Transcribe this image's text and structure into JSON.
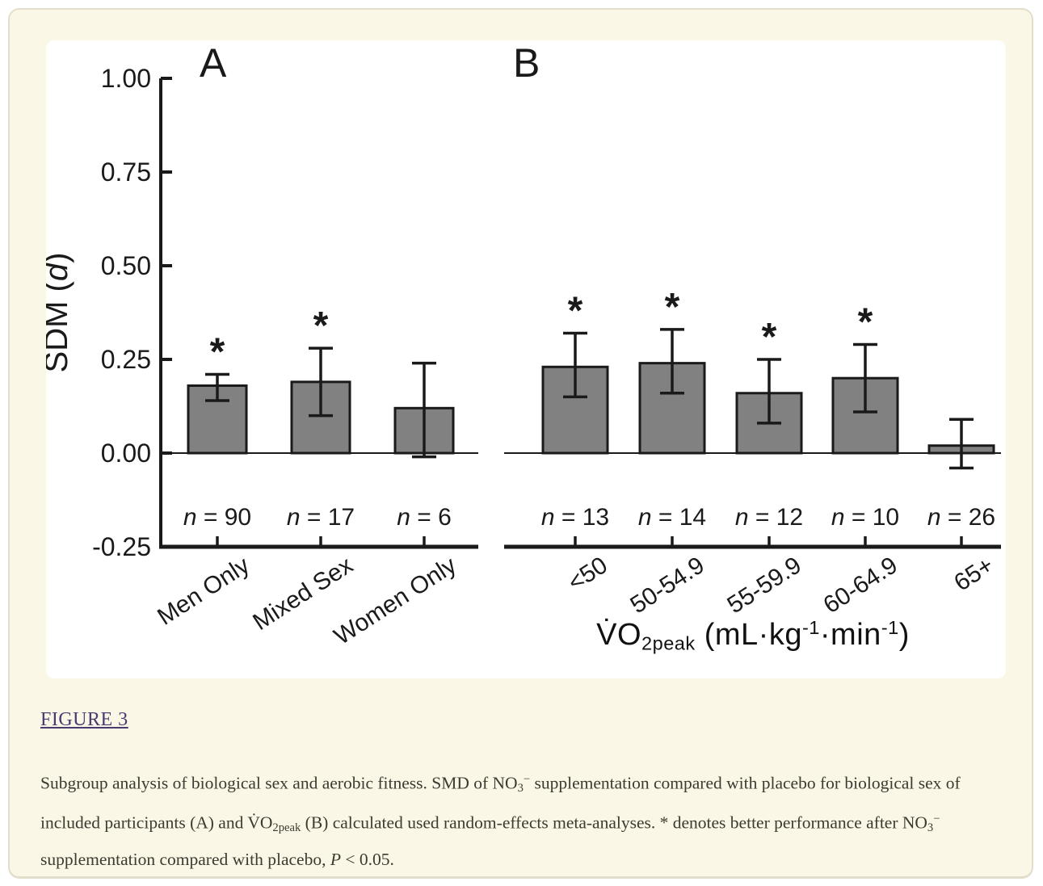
{
  "colors": {
    "card_bg": "#fbf7e6",
    "card_border": "#e3decb",
    "link": "#4b3a72",
    "caption_text": "#3c3b31",
    "figure_ink": "#1a1a1a",
    "bar_fill": "#818181"
  },
  "figure_link": {
    "label": "FIGURE 3"
  },
  "caption_segments": [
    {
      "t": "Subgroup analysis of biological sex and aerobic fitness. SMD of NO"
    },
    {
      "t": "3",
      "s": "sub"
    },
    {
      "t": "−",
      "s": "sup"
    },
    {
      "t": " supplementation compared with placebo for biological sex of included participants (A) and V̇O"
    },
    {
      "t": "2peak",
      "s": "sub"
    },
    {
      "t": " (B) calculated used random-effects meta-analyses. * denotes better performance after NO"
    },
    {
      "t": "3",
      "s": "sub"
    },
    {
      "t": "−",
      "s": "sup"
    },
    {
      "t": " supplementation compared with placebo, "
    },
    {
      "t": "P",
      "s": "i"
    },
    {
      "t": " < 0.05."
    }
  ],
  "xlabel_segments": [
    {
      "t": "V̇O"
    },
    {
      "t": "2peak",
      "s": "sub"
    },
    {
      "t": " (mL·kg"
    },
    {
      "t": "-1",
      "s": "sup"
    },
    {
      "t": "·min"
    },
    {
      "t": "-1",
      "s": "sup"
    },
    {
      "t": ")"
    }
  ],
  "chart_data": [
    {
      "type": "bar",
      "panel": "A",
      "categories": [
        "Men Only",
        "Mixed Sex",
        "Women Only"
      ],
      "values": [
        0.18,
        0.19,
        0.12
      ],
      "ci_low": [
        0.14,
        0.1,
        -0.01
      ],
      "ci_high": [
        0.21,
        0.28,
        0.24
      ],
      "n_labels": [
        "n = 90",
        "n = 17",
        "n = 6"
      ],
      "significant": [
        true,
        true,
        false
      ],
      "ylabel": "SDM (d)",
      "ylabel_segments": [
        {
          "t": "SDM ("
        },
        {
          "t": "d",
          "s": "i"
        },
        {
          "t": ")"
        }
      ],
      "ylim": [
        -0.25,
        1.0
      ],
      "yticks": [
        "1.00",
        "0.75",
        "0.50",
        "0.25",
        "0.00",
        "-0.25"
      ],
      "grid": false,
      "bar_color": "#818181"
    },
    {
      "type": "bar",
      "panel": "B",
      "categories": [
        "<50",
        "50-54.9",
        "55-59.9",
        "60-64.9",
        "65+"
      ],
      "values": [
        0.23,
        0.24,
        0.16,
        0.2,
        0.02
      ],
      "ci_low": [
        0.15,
        0.16,
        0.08,
        0.11,
        -0.04
      ],
      "ci_high": [
        0.32,
        0.33,
        0.25,
        0.29,
        0.09
      ],
      "n_labels": [
        "n = 13",
        "n = 14",
        "n = 12",
        "n = 10",
        "n = 26"
      ],
      "significant": [
        true,
        true,
        true,
        true,
        false
      ],
      "xlabel": "V̇O2peak (mL·kg-1·min-1)",
      "ylim": [
        -0.25,
        1.0
      ],
      "grid": false,
      "bar_color": "#818181"
    }
  ]
}
